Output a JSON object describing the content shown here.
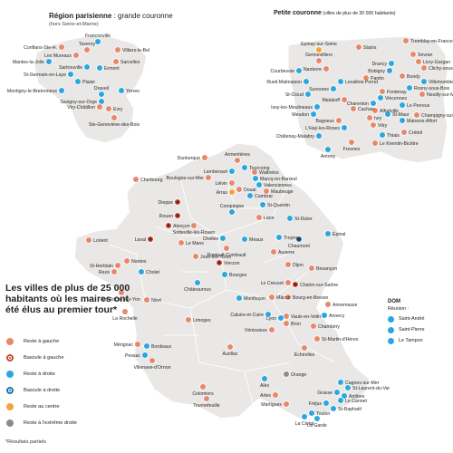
{
  "inset_left": {
    "title": "Région parisienne",
    "title_suffix": " : grande couronne",
    "note": "(hors Seine-et-Marne)"
  },
  "inset_right": {
    "title": "Petite couronne",
    "title_suffix": " (villes de plus de 30 000 habitants)"
  },
  "legend": {
    "title": "Les villes de plus de 25 000 habitants où les maires ont été élus au premier tour*",
    "items": [
      {
        "label": "Reste à gauche",
        "color": "#e8886b",
        "ring": false
      },
      {
        "label": "Bascule à gauche",
        "color": "#c8432b",
        "ring": true
      },
      {
        "label": "Reste à droite",
        "color": "#2aa7df",
        "ring": false
      },
      {
        "label": "Bascule à droite",
        "color": "#1a6fa8",
        "ring": true
      },
      {
        "label": "Reste au centre",
        "color": "#f5a23a",
        "ring": false
      },
      {
        "label": "Reste à l'extrême droite",
        "color": "#8c8c8c",
        "ring": false
      }
    ],
    "footnote": "*Résultats partiels"
  },
  "dom": {
    "title": "DOM",
    "subtitle": "Réunion :",
    "cities": [
      "Saint-André",
      "Saint-Pierre",
      "Le Tampon"
    ]
  },
  "colors": {
    "gauche": "#e8886b",
    "bascule_gauche": "#c8432b",
    "droite": "#2aa7df",
    "bascule_droite": "#1a6fa8",
    "centre": "#f5a23a",
    "extreme_droite": "#8c8c8c"
  },
  "cities": [
    {
      "name": "Dunkerque",
      "cat": "gauche"
    },
    {
      "name": "Armentières",
      "cat": "gauche"
    },
    {
      "name": "Tourcoing",
      "cat": "droite"
    },
    {
      "name": "Lambersart",
      "cat": "droite"
    },
    {
      "name": "Wattrelos",
      "cat": "gauche"
    },
    {
      "name": "Marcq-en-Barœul",
      "cat": "droite"
    },
    {
      "name": "Boulogne-sur-Mer",
      "cat": "gauche"
    },
    {
      "name": "Liévin",
      "cat": "gauche"
    },
    {
      "name": "Valenciennes",
      "cat": "droite"
    },
    {
      "name": "Arras",
      "cat": "centre"
    },
    {
      "name": "Maubeuge",
      "cat": "gauche"
    },
    {
      "name": "Douai",
      "cat": "gauche"
    },
    {
      "name": "Cambrai",
      "cat": "droite"
    },
    {
      "name": "St-Quentin",
      "cat": "droite"
    },
    {
      "name": "Cherbourg",
      "cat": "gauche"
    },
    {
      "name": "Dieppe",
      "cat": "bascule_gauche"
    },
    {
      "name": "Compiègne",
      "cat": "droite"
    },
    {
      "name": "Laon",
      "cat": "gauche"
    },
    {
      "name": "Rouen",
      "cat": "bascule_gauche"
    },
    {
      "name": "Sotteville-lès-Rouen",
      "cat": "gauche"
    },
    {
      "name": "Chelles",
      "cat": "droite"
    },
    {
      "name": "Meaux",
      "cat": "droite"
    },
    {
      "name": "St-Dizier",
      "cat": "droite"
    },
    {
      "name": "Alençon",
      "cat": "bascule_gauche"
    },
    {
      "name": "Pontault-Combault",
      "cat": "gauche"
    },
    {
      "name": "Troyes",
      "cat": "droite"
    },
    {
      "name": "Laval",
      "cat": "bascule_gauche"
    },
    {
      "name": "Le Mans",
      "cat": "gauche"
    },
    {
      "name": "Chaumont",
      "cat": "bascule_droite"
    },
    {
      "name": "Épinal",
      "cat": "droite"
    },
    {
      "name": "Lorient",
      "cat": "gauche"
    },
    {
      "name": "Joué-lès-Tours",
      "cat": "gauche"
    },
    {
      "name": "Auxerre",
      "cat": "gauche"
    },
    {
      "name": "St-Herblain",
      "cat": "gauche"
    },
    {
      "name": "Nantes",
      "cat": "gauche"
    },
    {
      "name": "Vierzon",
      "cat": "bascule_gauche"
    },
    {
      "name": "Dijon",
      "cat": "gauche"
    },
    {
      "name": "Besançon",
      "cat": "gauche"
    },
    {
      "name": "Rezé",
      "cat": "gauche"
    },
    {
      "name": "Cholet",
      "cat": "droite"
    },
    {
      "name": "Bourges",
      "cat": "droite"
    },
    {
      "name": "Le Creusot",
      "cat": "gauche"
    },
    {
      "name": "Chalon-sur-Saône",
      "cat": "bascule_gauche"
    },
    {
      "name": "La Roche-sur-Yon",
      "cat": "gauche"
    },
    {
      "name": "Châteauroux",
      "cat": "droite"
    },
    {
      "name": "Niort",
      "cat": "gauche"
    },
    {
      "name": "Montluçon",
      "cat": "droite"
    },
    {
      "name": "Mâcon",
      "cat": "gauche"
    },
    {
      "name": "Bourg-en-Bresse",
      "cat": "gauche"
    },
    {
      "name": "Annemasse",
      "cat": "gauche"
    },
    {
      "name": "La Rochelle",
      "cat": "gauche"
    },
    {
      "name": "Limoges",
      "cat": "gauche"
    },
    {
      "name": "Caluire-et-Cuire",
      "cat": "droite"
    },
    {
      "name": "Vaulx-en-Velin",
      "cat": "gauche"
    },
    {
      "name": "Lyon",
      "cat": "droite"
    },
    {
      "name": "Bron",
      "cat": "gauche"
    },
    {
      "name": "Annecy",
      "cat": "droite"
    },
    {
      "name": "Vénissieux",
      "cat": "gauche"
    },
    {
      "name": "Chambéry",
      "cat": "gauche"
    },
    {
      "name": "St-Martin-d'Hères",
      "cat": "gauche"
    },
    {
      "name": "Échirolles",
      "cat": "gauche"
    },
    {
      "name": "Mérignac",
      "cat": "gauche"
    },
    {
      "name": "Bordeaux",
      "cat": "droite"
    },
    {
      "name": "Pessac",
      "cat": "droite"
    },
    {
      "name": "Villenave-d'Ornon",
      "cat": "gauche"
    },
    {
      "name": "Aurillac",
      "cat": "gauche"
    },
    {
      "name": "Orange",
      "cat": "extreme_droite"
    },
    {
      "name": "Alès",
      "cat": "droite"
    },
    {
      "name": "Cagnes-sur-Mer",
      "cat": "droite"
    },
    {
      "name": "Grasse",
      "cat": "droite"
    },
    {
      "name": "St-Laurent-du-Var",
      "cat": "droite"
    },
    {
      "name": "Antibes",
      "cat": "droite"
    },
    {
      "name": "Arles",
      "cat": "gauche"
    },
    {
      "name": "Le Cannet",
      "cat": "droite"
    },
    {
      "name": "Colomiers",
      "cat": "gauche"
    },
    {
      "name": "Tournefeuille",
      "cat": "gauche"
    },
    {
      "name": "Martigues",
      "cat": "gauche"
    },
    {
      "name": "Fréjus",
      "cat": "droite"
    },
    {
      "name": "Toulon",
      "cat": "droite"
    },
    {
      "name": "St-Raphaël",
      "cat": "droite"
    },
    {
      "name": "La Ciotat",
      "cat": "droite"
    },
    {
      "name": "La Garde",
      "cat": "droite"
    },
    {
      "name": "Franconville",
      "cat": "droite"
    },
    {
      "name": "Conflans-Ste-H.",
      "cat": "gauche"
    },
    {
      "name": "Taverny",
      "cat": "gauche"
    },
    {
      "name": "Villiers-le-Bel",
      "cat": "gauche"
    },
    {
      "name": "Les Mureaux",
      "cat": "gauche"
    },
    {
      "name": "Mantes-la-Jolie",
      "cat": "droite"
    },
    {
      "name": "Sartrouville",
      "cat": "droite"
    },
    {
      "name": "Sarcelles",
      "cat": "gauche"
    },
    {
      "name": "Ermont",
      "cat": "droite"
    },
    {
      "name": "St-Germain-en-Laye",
      "cat": "droite"
    },
    {
      "name": "Plaisir",
      "cat": "droite"
    },
    {
      "name": "Montigny-le-Bretonneux",
      "cat": "droite"
    },
    {
      "name": "Draveil",
      "cat": "droite"
    },
    {
      "name": "Yerres",
      "cat": "droite"
    },
    {
      "name": "Savigny-sur-Orge",
      "cat": "droite"
    },
    {
      "name": "Viry-Châtillon",
      "cat": "gauche"
    },
    {
      "name": "Evry",
      "cat": "gauche"
    },
    {
      "name": "Ste-Geneviève-des-Bois",
      "cat": "gauche"
    },
    {
      "name": "Epinay-sur-Seine",
      "cat": "centre"
    },
    {
      "name": "Stains",
      "cat": "gauche"
    },
    {
      "name": "Tremblay-en-France",
      "cat": "gauche"
    },
    {
      "name": "Sevran",
      "cat": "gauche"
    },
    {
      "name": "Gennevilliers",
      "cat": "gauche"
    },
    {
      "name": "Drancy",
      "cat": "droite"
    },
    {
      "name": "Livry-Gargan",
      "cat": "gauche"
    },
    {
      "name": "Courbevoie",
      "cat": "droite"
    },
    {
      "name": "Nanterre",
      "cat": "gauche"
    },
    {
      "name": "Clichy-sous-Bois",
      "cat": "gauche"
    },
    {
      "name": "Bobigny",
      "cat": "droite"
    },
    {
      "name": "Bondy",
      "cat": "gauche"
    },
    {
      "name": "Rueil-Malmaison",
      "cat": "droite"
    },
    {
      "name": "Pantin",
      "cat": "gauche"
    },
    {
      "name": "Villemomble",
      "cat": "droite"
    },
    {
      "name": "Levallois-Perret",
      "cat": "droite"
    },
    {
      "name": "Suresnes",
      "cat": "droite"
    },
    {
      "name": "Rosny-sous-Bois",
      "cat": "droite"
    },
    {
      "name": "St-Cloud",
      "cat": "droite"
    },
    {
      "name": "Fontenay",
      "cat": "gauche"
    },
    {
      "name": "Neuilly-sur-Marne",
      "cat": "gauche"
    },
    {
      "name": "Malakoff",
      "cat": "gauche"
    },
    {
      "name": "Vincennes",
      "cat": "droite"
    },
    {
      "name": "Issy-les-Moulineaux",
      "cat": "droite"
    },
    {
      "name": "Le Perreux",
      "cat": "droite"
    },
    {
      "name": "Charenton",
      "cat": "droite"
    },
    {
      "name": "Meudon",
      "cat": "droite"
    },
    {
      "name": "Cachan",
      "cat": "gauche"
    },
    {
      "name": "Alfortville",
      "cat": "gauche"
    },
    {
      "name": "Maisons-Alfort",
      "cat": "droite"
    },
    {
      "name": "Champigny-sur-Marne",
      "cat": "gauche"
    },
    {
      "name": "Bagneux",
      "cat": "gauche"
    },
    {
      "name": "Ivry",
      "cat": "gauche"
    },
    {
      "name": "St-Maur",
      "cat": "droite"
    },
    {
      "name": "Châtenay-Malabry",
      "cat": "droite"
    },
    {
      "name": "L'Haÿ-les-Roses",
      "cat": "droite"
    },
    {
      "name": "Créteil",
      "cat": "gauche"
    },
    {
      "name": "Thiais",
      "cat": "droite"
    },
    {
      "name": "Vitry",
      "cat": "gauche"
    },
    {
      "name": "Antony",
      "cat": "droite"
    },
    {
      "name": "Fresnes",
      "cat": "gauche"
    },
    {
      "name": "Le Kremlin-Bicêtre",
      "cat": "gauche"
    }
  ]
}
